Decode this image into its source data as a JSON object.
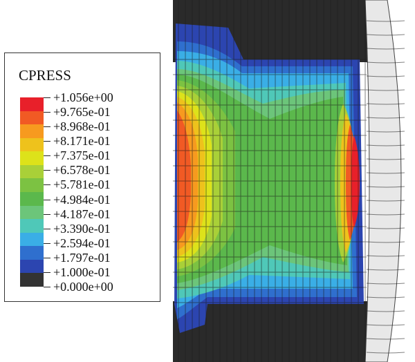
{
  "legend": {
    "title": "CPRESS",
    "labels": [
      "+1.056e+00",
      "+9.765e-01",
      "+8.968e-01",
      "+8.171e-01",
      "+7.375e-01",
      "+6.578e-01",
      "+5.781e-01",
      "+4.984e-01",
      "+4.187e-01",
      "+3.390e-01",
      "+2.594e-01",
      "+1.797e-01",
      "+1.000e-01",
      "+0.000e+00"
    ],
    "colors": [
      "#e8202a",
      "#f15a24",
      "#f79a1f",
      "#eec21c",
      "#dde21a",
      "#a9d038",
      "#7cc242",
      "#5bb84c",
      "#6cc57a",
      "#4fc8b8",
      "#3aaee6",
      "#2f6fce",
      "#2c45b0",
      "#333333"
    ]
  }
}
